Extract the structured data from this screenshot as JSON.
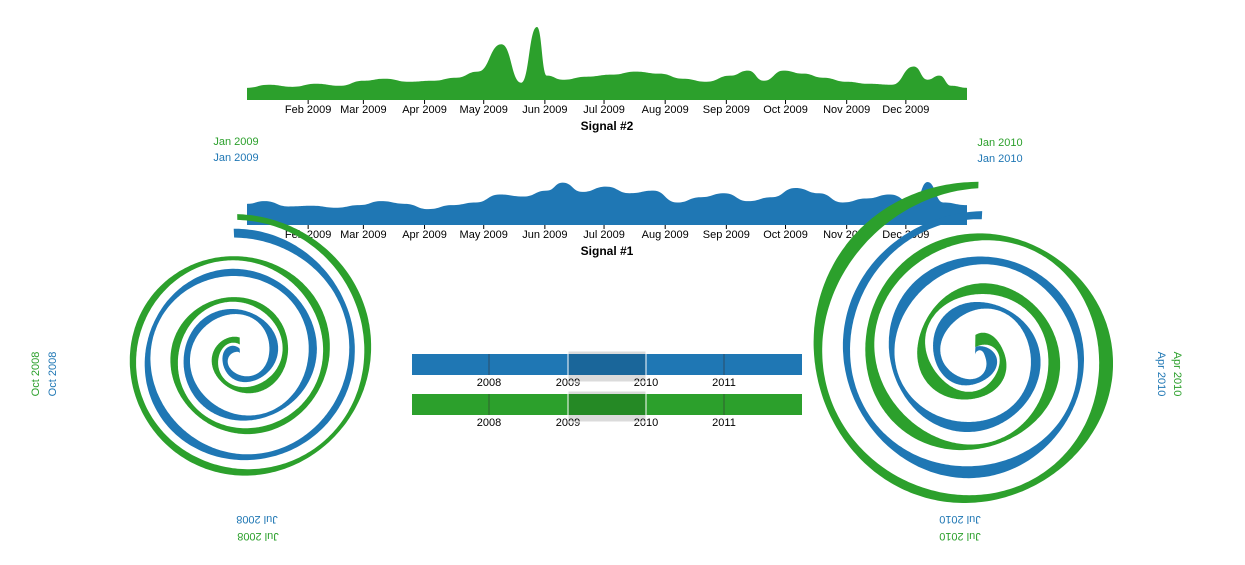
{
  "colors": {
    "signal1": "#1f77b4",
    "signal2": "#2ca02c",
    "brush": "#000000"
  },
  "chart_data": [
    {
      "type": "area",
      "xlabel": "Signal #2",
      "x_range": [
        "2009-01-01",
        "2010-01-01"
      ],
      "x_ticks": [
        "Feb 2009",
        "Mar 2009",
        "Apr 2009",
        "May 2009",
        "Jun 2009",
        "Jul 2009",
        "Aug 2009",
        "Sep 2009",
        "Oct 2009",
        "Nov 2009",
        "Dec 2009"
      ],
      "series": [
        {
          "x": [
            "2009-01-01",
            "2009-01-12",
            "2009-01-24",
            "2009-02-05",
            "2009-02-17",
            "2009-03-01",
            "2009-03-12",
            "2009-03-24",
            "2009-04-05",
            "2009-04-17",
            "2009-04-28",
            "2009-05-10",
            "2009-05-20",
            "2009-05-28",
            "2009-06-02",
            "2009-06-10",
            "2009-06-22",
            "2009-07-05",
            "2009-07-17",
            "2009-07-29",
            "2009-08-10",
            "2009-08-22",
            "2009-09-03",
            "2009-09-12",
            "2009-09-20",
            "2009-09-30",
            "2009-10-10",
            "2009-10-20",
            "2009-11-01",
            "2009-11-12",
            "2009-11-24",
            "2009-12-05",
            "2009-12-12",
            "2009-12-18",
            "2009-12-24",
            "2010-01-01"
          ],
          "values": [
            1.2,
            1.5,
            1.3,
            1.6,
            1.4,
            1.9,
            2.1,
            1.8,
            1.9,
            2.2,
            2.8,
            5.5,
            1.7,
            7.2,
            2.4,
            2.0,
            2.3,
            2.5,
            2.8,
            2.6,
            2.1,
            1.8,
            2.4,
            2.9,
            1.9,
            2.9,
            2.6,
            2.2,
            1.8,
            1.6,
            1.5,
            3.3,
            2.0,
            2.4,
            1.4,
            1.2
          ]
        }
      ]
    },
    {
      "type": "area",
      "xlabel": "Signal #1",
      "x_range": [
        "2009-01-01",
        "2010-01-01"
      ],
      "x_ticks": [
        "Feb 2009",
        "Mar 2009",
        "Apr 2009",
        "May 2009",
        "Jun 2009",
        "Jul 2009",
        "Aug 2009",
        "Sep 2009",
        "Oct 2009",
        "Nov 2009",
        "Dec 2009"
      ],
      "series": [
        {
          "x": [
            "2009-01-01",
            "2009-01-10",
            "2009-01-22",
            "2009-02-03",
            "2009-02-15",
            "2009-02-27",
            "2009-03-10",
            "2009-03-22",
            "2009-04-03",
            "2009-04-15",
            "2009-04-27",
            "2009-05-09",
            "2009-05-21",
            "2009-06-02",
            "2009-06-10",
            "2009-06-20",
            "2009-07-02",
            "2009-07-14",
            "2009-07-26",
            "2009-08-07",
            "2009-08-19",
            "2009-08-31",
            "2009-09-12",
            "2009-09-24",
            "2009-10-06",
            "2009-10-18",
            "2009-10-30",
            "2009-11-11",
            "2009-11-23",
            "2009-12-05",
            "2009-12-12",
            "2009-12-20",
            "2010-01-01"
          ],
          "values": [
            3.2,
            3.6,
            2.8,
            2.9,
            2.6,
            3.0,
            3.6,
            3.2,
            2.4,
            3.0,
            3.4,
            4.6,
            4.3,
            5.2,
            6.4,
            5.0,
            5.8,
            4.8,
            5.2,
            3.4,
            4.2,
            4.8,
            3.6,
            4.2,
            5.6,
            4.8,
            3.4,
            4.0,
            4.6,
            3.2,
            6.5,
            3.4,
            3.0
          ]
        }
      ]
    }
  ],
  "spirals": {
    "left": {
      "labels": [
        "Jan 2009",
        "Oct 2008",
        "Jul 2008"
      ]
    },
    "right": {
      "labels": [
        "Jan 2010",
        "Apr 2010",
        "Jul 2010"
      ]
    }
  },
  "mini_timelines": {
    "ticks": [
      "2008",
      "2009",
      "2010",
      "2011"
    ],
    "selected_range": [
      "2009",
      "2010"
    ]
  }
}
